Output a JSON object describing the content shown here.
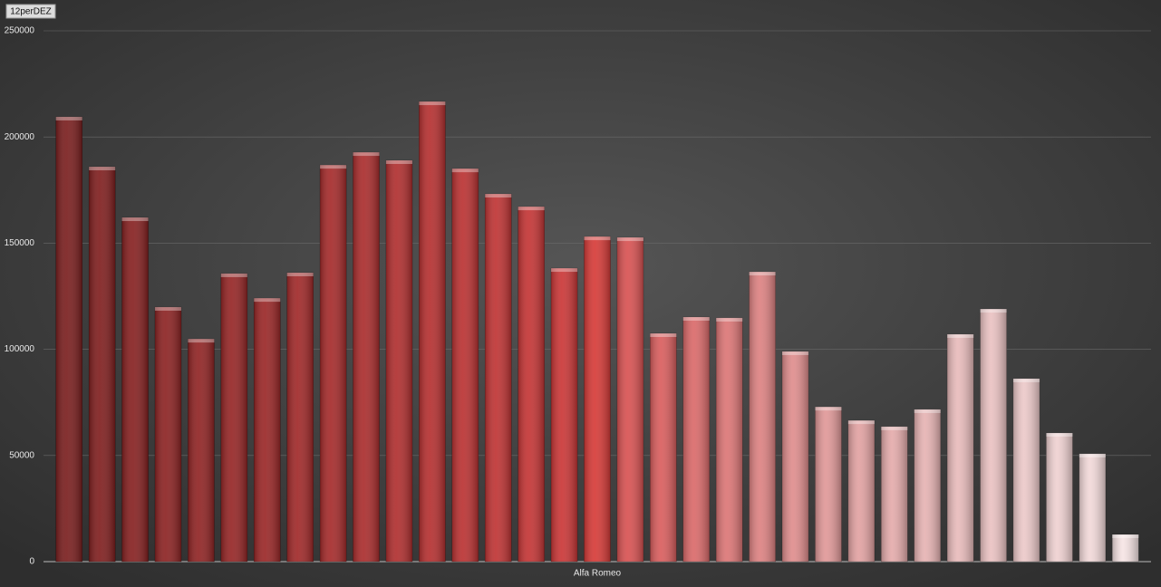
{
  "chart_data": {
    "type": "bar",
    "series": [
      {
        "name": "12perDEZ",
        "values": [
          209500,
          186000,
          162100,
          119900,
          104900,
          135700,
          124100,
          136100,
          186800,
          192800,
          189000,
          216700,
          185100,
          173200,
          167200,
          138200,
          153100,
          152700,
          107500,
          115200,
          114800,
          136500,
          99000,
          72900,
          66500,
          63600,
          71700,
          107100,
          119000,
          86200,
          60600,
          50800,
          12800
        ],
        "colors": [
          "#7a1f1f",
          "#801f1f",
          "#862121",
          "#8c2323",
          "#902424",
          "#952626",
          "#9a2727",
          "#a02929",
          "#a52b2b",
          "#aa2d2d",
          "#b02f2f",
          "#b53030",
          "#ba3232",
          "#bf3434",
          "#c43535",
          "#ca3737",
          "#d63b38",
          "#d85252",
          "#d95e5e",
          "#da6a6a",
          "#dc7676",
          "#dd8282",
          "#df8d8d",
          "#e09898",
          "#e2a2a2",
          "#e4abab",
          "#e6b3b3",
          "#e8bbbb",
          "#eac2c2",
          "#ecc9c9",
          "#efd1d1",
          "#f2d9d9",
          "#f6e4e4"
        ]
      }
    ],
    "xlabel": "Alfa Romeo",
    "ylim": [
      0,
      250000
    ],
    "yticks": [
      0,
      50000,
      100000,
      150000,
      200000,
      250000
    ],
    "grid": true
  }
}
